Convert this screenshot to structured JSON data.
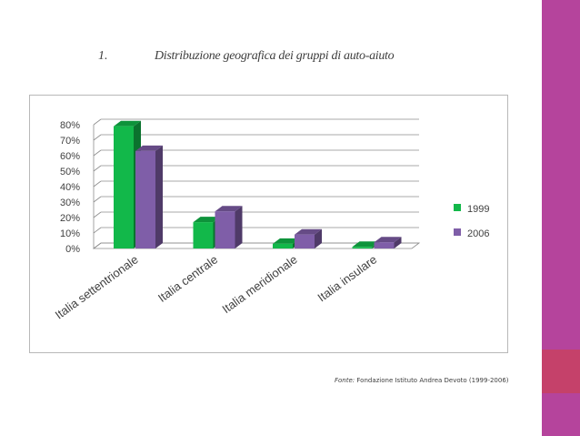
{
  "slide": {
    "number": "1.",
    "title": "Distribuzione geografica dei gruppi di auto-aiuto",
    "source_label": "Fonte:",
    "source_text": " Fondazione Istituto Andrea Devoto (1999-2006)",
    "accent_color": "#b5449c",
    "accent_color_2": "#c5416a"
  },
  "chart_data": {
    "type": "bar",
    "title": "",
    "xlabel": "",
    "ylabel": "",
    "categories": [
      "Italia settentrionale",
      "Italia centrale",
      "Italia meridionale",
      "Italia insulare"
    ],
    "series": [
      {
        "name": "1999",
        "values": [
          0.79,
          0.17,
          0.03,
          0.01
        ],
        "color": "#12b84a"
      },
      {
        "name": "2006",
        "values": [
          0.63,
          0.24,
          0.09,
          0.04
        ],
        "color": "#7f5ea8"
      }
    ],
    "ylim": [
      0,
      0.8
    ],
    "yticks": [
      "0%",
      "10%",
      "20%",
      "30%",
      "40%",
      "50%",
      "60%",
      "70%",
      "80%"
    ],
    "grid": true,
    "legend_position": "right",
    "style": "3d-clustered"
  }
}
